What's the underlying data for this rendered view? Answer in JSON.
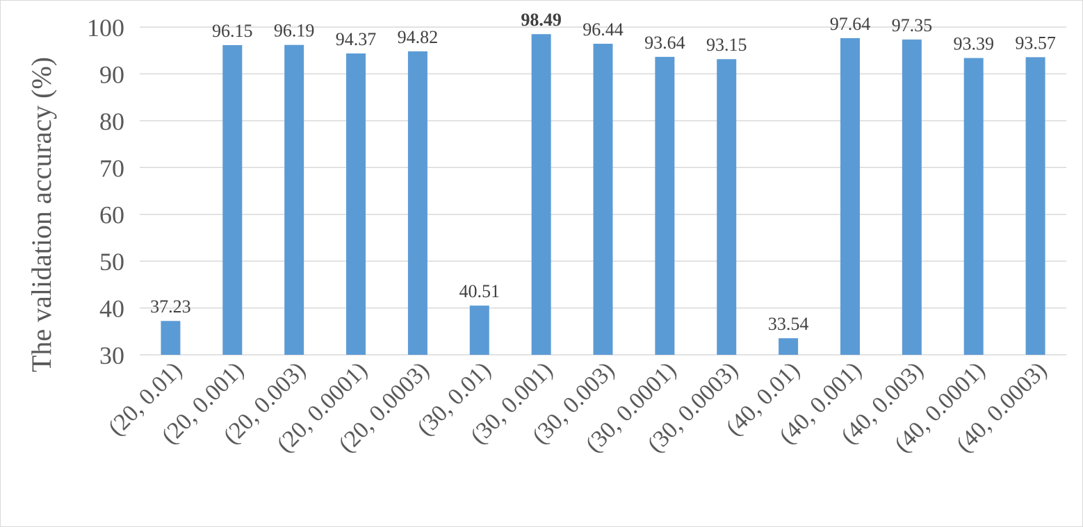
{
  "chart_data": {
    "type": "bar",
    "ylabel": "The validation accuracy (%)",
    "ylim": [
      30,
      100
    ],
    "yticks": [
      30,
      40,
      50,
      60,
      70,
      80,
      90,
      100
    ],
    "grid": true,
    "bar_color": "#5b9bd5",
    "categories": [
      "(20, 0.01)",
      "(20, 0.001)",
      "(20, 0.003)",
      "(20, 0.0001)",
      "(20, 0.0003)",
      "(30, 0.01)",
      "(30, 0.001)",
      "(30, 0.003)",
      "(30, 0.0001)",
      "(30, 0.0003)",
      "(40, 0.01)",
      "(40, 0.001)",
      "(40, 0.003)",
      "(40, 0.0001)",
      "(40, 0.0003)"
    ],
    "values": [
      37.23,
      96.15,
      96.19,
      94.37,
      94.82,
      40.51,
      98.49,
      96.44,
      93.64,
      93.15,
      33.54,
      97.64,
      97.35,
      93.39,
      93.57
    ],
    "data_labels": [
      "37.23",
      "96.15",
      "96.19",
      "94.37",
      "94.82",
      "40.51",
      "98.49",
      "96.44",
      "93.64",
      "93.15",
      "33.54",
      "97.64",
      "97.35",
      "93.39",
      "93.57"
    ],
    "highlight_index": 6
  }
}
